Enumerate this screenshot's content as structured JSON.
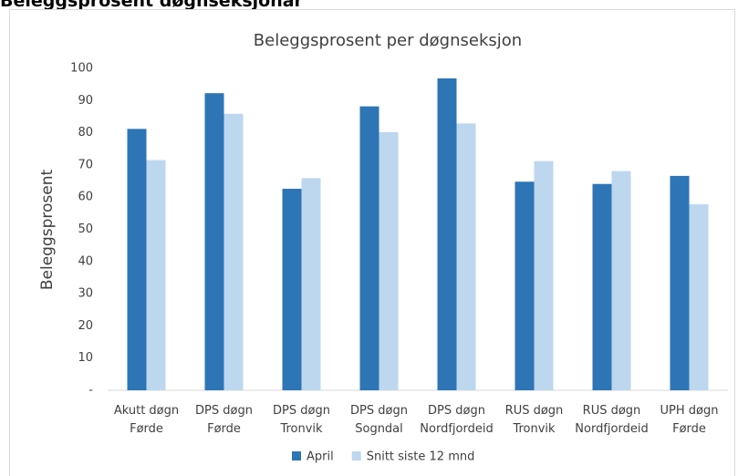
{
  "heading": "Beleggsprosent døgnseksjonar",
  "chart_data": {
    "type": "bar",
    "title": "Beleggsprosent per døgnseksjon",
    "ylabel": "Beleggsprosent",
    "categories": [
      "Akutt døgn Førde",
      "DPS døgn Førde",
      "DPS døgn Tronvik",
      "DPS døgn Sogndal",
      "DPS døgn Nordfjordeid",
      "RUS døgn Tronvik",
      "RUS døgn Nordfjordeid",
      "UPH døgn Førde"
    ],
    "series": [
      {
        "name": "April",
        "color": "#2e75b6",
        "values": [
          81.2,
          92.3,
          62.6,
          88.2,
          96.9,
          64.8,
          64.1,
          66.6
        ]
      },
      {
        "name": "Snitt siste 12 mnd",
        "color": "#bdd7ee",
        "values": [
          71.5,
          85.9,
          65.9,
          80.2,
          82.9,
          71.2,
          68.1,
          57.8
        ]
      }
    ],
    "ylim": [
      0,
      100
    ],
    "yticks": [
      {
        "value": 0,
        "label": "-"
      },
      10,
      20,
      30,
      40,
      50,
      60,
      70,
      80,
      90,
      100
    ],
    "grid": false,
    "legend": "bottom"
  }
}
